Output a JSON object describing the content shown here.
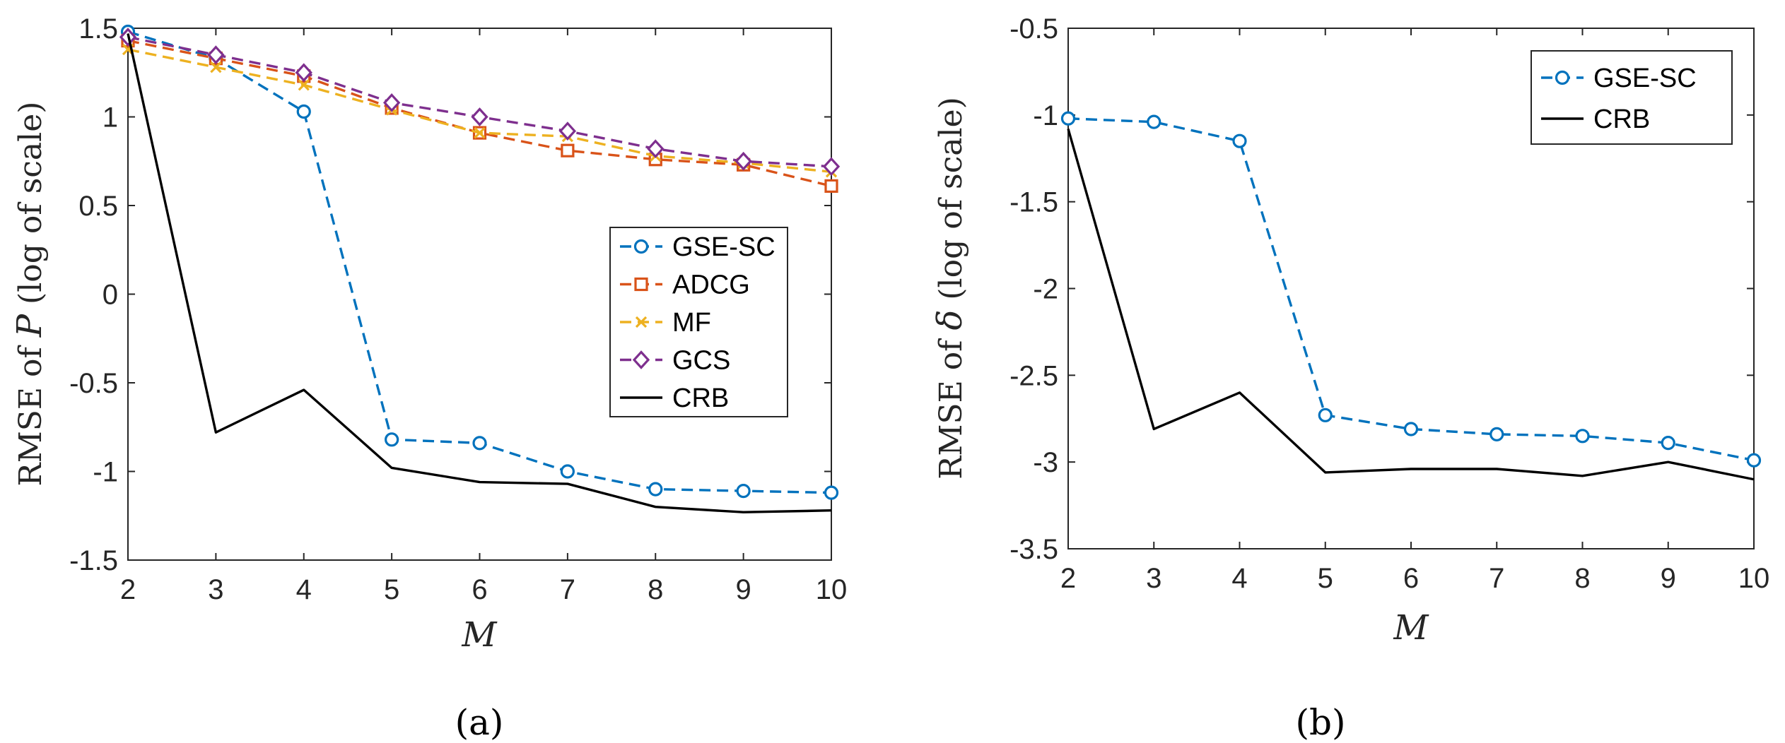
{
  "chart_data": [
    {
      "type": "line",
      "panel": "a",
      "caption": "(a)",
      "xlabel": "M",
      "ylabel_prefix": "RMSE of ",
      "ylabel_symbol": "P",
      "ylabel_suffix": " (log of scale)",
      "xlim": [
        2,
        10
      ],
      "ylim": [
        -1.5,
        1.5
      ],
      "xticks": [
        "2",
        "3",
        "4",
        "5",
        "6",
        "7",
        "8",
        "9",
        "10"
      ],
      "yticks": [
        "1.5",
        "1",
        "0.5",
        "0",
        "-0.5",
        "-1",
        "-1.5"
      ],
      "legend_position": "center-right",
      "x": [
        2,
        3,
        4,
        5,
        6,
        7,
        8,
        9,
        10
      ],
      "series": [
        {
          "name": "GSE-SC",
          "color": "#0072BD",
          "dash": "dashed",
          "marker": "circle",
          "values": [
            1.48,
            1.33,
            1.03,
            -0.82,
            -0.84,
            -1.0,
            -1.1,
            -1.11,
            -1.12
          ]
        },
        {
          "name": "ADCG",
          "color": "#D95319",
          "dash": "dashed",
          "marker": "square",
          "values": [
            1.43,
            1.33,
            1.23,
            1.05,
            0.91,
            0.81,
            0.76,
            0.73,
            0.61
          ]
        },
        {
          "name": "MF",
          "color": "#EDB120",
          "dash": "dashed",
          "marker": "x",
          "values": [
            1.38,
            1.28,
            1.18,
            1.04,
            0.91,
            0.89,
            0.78,
            0.74,
            0.69
          ]
        },
        {
          "name": "GCS",
          "color": "#7E2F8E",
          "dash": "dashed",
          "marker": "diamond",
          "values": [
            1.45,
            1.35,
            1.25,
            1.08,
            1.0,
            0.92,
            0.82,
            0.75,
            0.72
          ]
        },
        {
          "name": "CRB",
          "color": "#000000",
          "dash": "solid",
          "marker": "none",
          "values": [
            1.47,
            -0.78,
            -0.54,
            -0.98,
            -1.06,
            -1.07,
            -1.2,
            -1.23,
            -1.22
          ]
        }
      ]
    },
    {
      "type": "line",
      "panel": "b",
      "caption": "(b)",
      "xlabel": "M",
      "ylabel_prefix": "RMSE of ",
      "ylabel_symbol": "δ",
      "ylabel_suffix": " (log of scale)",
      "xlim": [
        2,
        10
      ],
      "ylim": [
        -3.5,
        -0.5
      ],
      "xticks": [
        "2",
        "3",
        "4",
        "5",
        "6",
        "7",
        "8",
        "9",
        "10"
      ],
      "yticks": [
        "-0.5",
        "-1",
        "-1.5",
        "-2",
        "-2.5",
        "-3",
        "-3.5"
      ],
      "legend_position": "top-right",
      "x": [
        2,
        3,
        4,
        5,
        6,
        7,
        8,
        9,
        10
      ],
      "series": [
        {
          "name": "GSE-SC",
          "color": "#0072BD",
          "dash": "dashed",
          "marker": "circle",
          "values": [
            -1.02,
            -1.04,
            -1.15,
            -2.73,
            -2.81,
            -2.84,
            -2.85,
            -2.89,
            -2.99
          ]
        },
        {
          "name": "CRB",
          "color": "#000000",
          "dash": "solid",
          "marker": "none",
          "values": [
            -1.08,
            -2.81,
            -2.6,
            -3.06,
            -3.04,
            -3.04,
            -3.08,
            -3.0,
            -3.1
          ]
        }
      ]
    }
  ]
}
